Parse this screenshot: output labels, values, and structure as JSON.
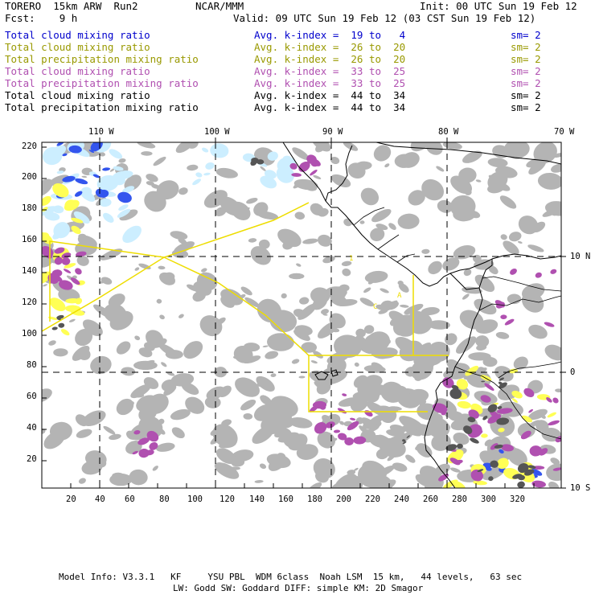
{
  "header": {
    "model": "TORERO  15km ARW  Run2",
    "org": "NCAR/MMM",
    "init": "Init: 00 UTC Sun 19 Feb 12",
    "fcst": "Fcst:    9 h",
    "valid": "Valid: 09 UTC Sun 19 Feb 12 (03 CST Sun 19 Feb 12)"
  },
  "legend": [
    {
      "field": "Total cloud mixing ratio",
      "index": "Avg. k-index =  19 to   4",
      "sm": "sm= 2",
      "color": "#0000cc"
    },
    {
      "field": "Total cloud mixing ratio",
      "index": "Avg. k-index =  26 to  20",
      "sm": "sm= 2",
      "color": "#999900"
    },
    {
      "field": "Total precipitation mixing ratio",
      "index": "Avg. k-index =  26 to  20",
      "sm": "sm= 2",
      "color": "#999900"
    },
    {
      "field": "Total cloud mixing ratio",
      "index": "Avg. k-index =  33 to  25",
      "sm": "sm= 2",
      "color": "#b04fb0"
    },
    {
      "field": "Total precipitation mixing ratio",
      "index": "Avg. k-index =  33 to  25",
      "sm": "sm= 2",
      "color": "#b04fb0"
    },
    {
      "field": "Total cloud mixing ratio",
      "index": "Avg. k-index =  44 to  34",
      "sm": "sm= 2",
      "color": "#000000"
    },
    {
      "field": "Total precipitation mixing ratio",
      "index": "Avg. k-index =  44 to  34",
      "sm": "sm= 2",
      "color": "#000000"
    }
  ],
  "map": {
    "lon_labels": [
      "110 W",
      "100 W",
      "90 W",
      "80 W",
      "70 W"
    ],
    "lat_labels": [
      "10 N",
      "0",
      "10 S"
    ],
    "y_ticks": [
      "220",
      "200",
      "180",
      "160",
      "140",
      "120",
      "100",
      "80",
      "60",
      "40",
      "20"
    ],
    "x_ticks": [
      "20",
      "40",
      "60",
      "80",
      "100",
      "120",
      "140",
      "160",
      "180",
      "200",
      "220",
      "240",
      "260",
      "280",
      "300",
      "320"
    ],
    "box_labels": [
      "1",
      "C",
      "A"
    ],
    "colors": {
      "gray": "#b4b4b4",
      "dark": "#555555",
      "magenta": "#b050b0",
      "yellow": "#ffff55",
      "blue": "#3355ee",
      "lightblue": "#cceeff",
      "box": "#e8d800"
    }
  },
  "footer": {
    "line1": "Model Info: V3.3.1   KF     YSU PBL  WDM 6class  Noah LSM  15 km,   44 levels,   63 sec",
    "line2": "LW: Godd SW: Goddard DIFF: simple KM: 2D Smagor"
  }
}
